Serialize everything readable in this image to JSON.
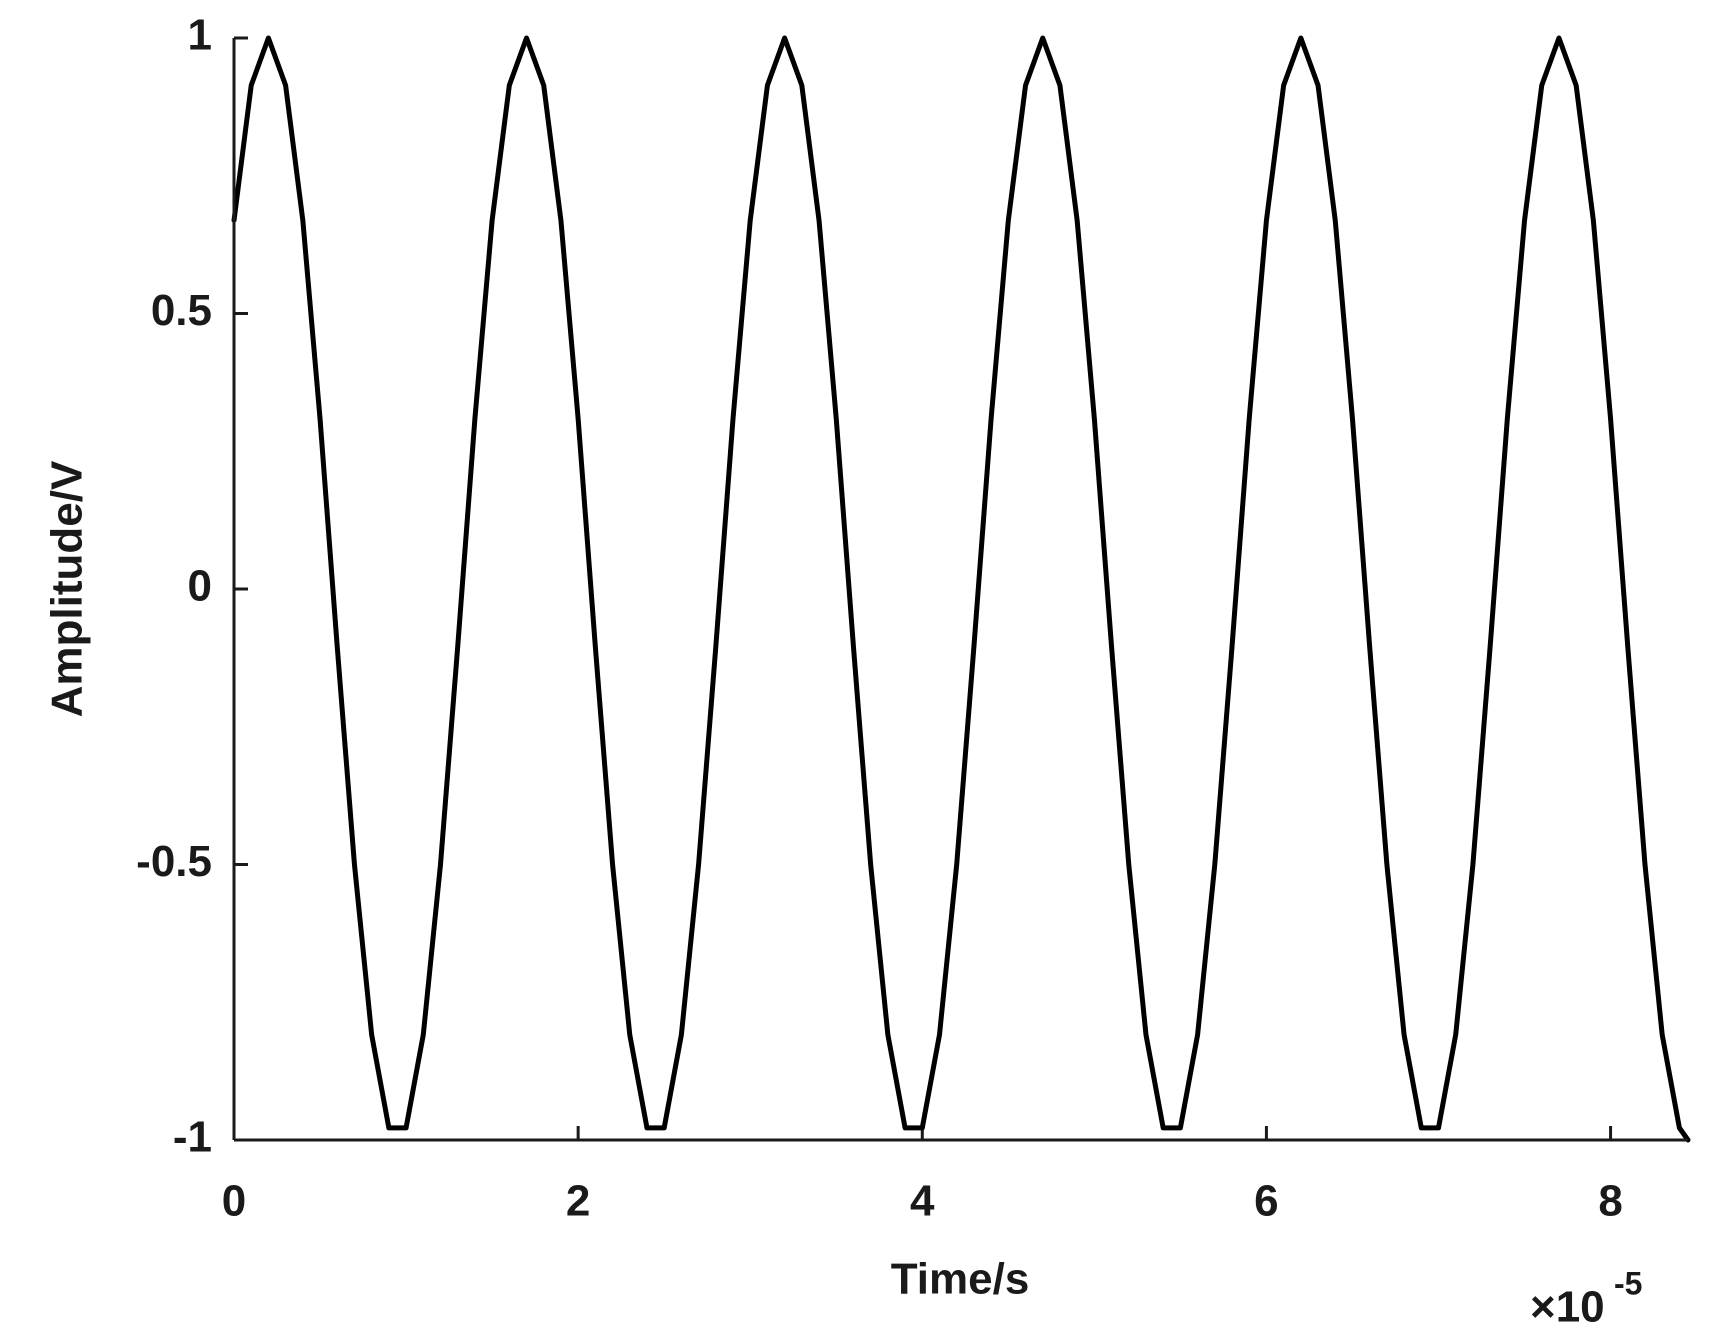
{
  "chart_data": {
    "type": "line",
    "xlabel": "Time/s",
    "ylabel": "Amplitude/V",
    "x_multiplier": {
      "base": "×10",
      "exponent": "-5"
    },
    "x": [
      0,
      0.1,
      0.2,
      0.3,
      0.4,
      0.5,
      0.6,
      0.7,
      0.8,
      0.9,
      1,
      1.1,
      1.2,
      1.3,
      1.4,
      1.5,
      1.6,
      1.7,
      1.8,
      1.9,
      2,
      2.1,
      2.2,
      2.3,
      2.4,
      2.5,
      2.6,
      2.7,
      2.8,
      2.9,
      3,
      3.1,
      3.2,
      3.3,
      3.4,
      3.5,
      3.6,
      3.7,
      3.8,
      3.9,
      4,
      4.1,
      4.2,
      4.3,
      4.4,
      4.5,
      4.6,
      4.7,
      4.8,
      4.9,
      5,
      5.1,
      5.2,
      5.3,
      5.4,
      5.5,
      5.6,
      5.7,
      5.8,
      5.9,
      6,
      6.1,
      6.2,
      6.3,
      6.4,
      6.5,
      6.6,
      6.7,
      6.8,
      6.9,
      7,
      7.1,
      7.2,
      7.3,
      7.4,
      7.5,
      7.6,
      7.7,
      7.8,
      7.9,
      8,
      8.1,
      8.2,
      8.3,
      8.4,
      8.45
    ],
    "values": [
      0.669,
      0.914,
      1,
      0.914,
      0.669,
      0.309,
      -0.105,
      -0.5,
      -0.809,
      -0.978,
      -0.978,
      -0.809,
      -0.5,
      -0.105,
      0.309,
      0.669,
      0.914,
      1,
      0.914,
      0.669,
      0.309,
      -0.105,
      -0.5,
      -0.809,
      -0.978,
      -0.978,
      -0.809,
      -0.5,
      -0.105,
      0.309,
      0.669,
      0.914,
      1,
      0.914,
      0.669,
      0.309,
      -0.105,
      -0.5,
      -0.809,
      -0.978,
      -0.978,
      -0.809,
      -0.5,
      -0.105,
      0.309,
      0.669,
      0.914,
      1,
      0.914,
      0.669,
      0.309,
      -0.105,
      -0.5,
      -0.809,
      -0.978,
      -0.978,
      -0.809,
      -0.5,
      -0.105,
      0.309,
      0.669,
      0.914,
      1,
      0.914,
      0.669,
      0.309,
      -0.105,
      -0.5,
      -0.809,
      -0.978,
      -0.978,
      -0.809,
      -0.5,
      -0.105,
      0.309,
      0.669,
      0.914,
      1,
      0.914,
      0.669,
      0.309,
      -0.105,
      -0.5,
      -0.809,
      -0.978,
      -1
    ],
    "color": "#000000",
    "xlim": [
      0,
      8.45
    ],
    "ylim": [
      -1,
      1
    ],
    "xticks": [
      0,
      2,
      4,
      6,
      8
    ],
    "yticks": [
      -1,
      -0.5,
      0,
      0.5,
      1
    ]
  }
}
